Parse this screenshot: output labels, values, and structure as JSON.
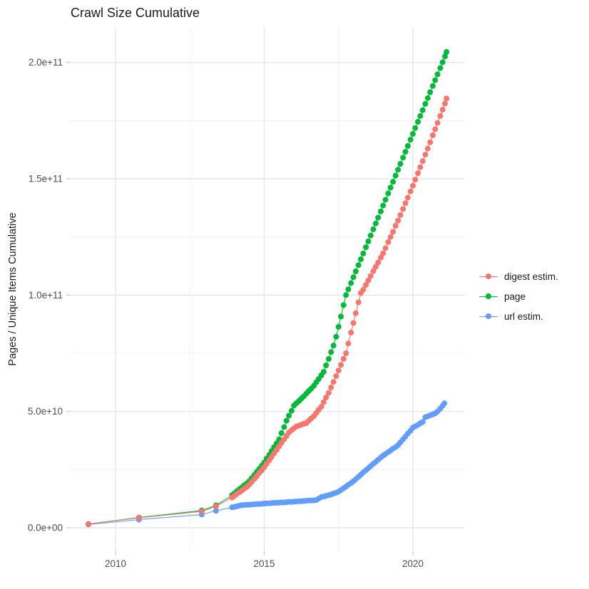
{
  "chart_data": {
    "type": "scatter",
    "title": "Crawl Size Cumulative",
    "xlabel": "",
    "ylabel": "Pages / Unique Items Cumulative",
    "value_unit": "1e9",
    "xlim": [
      2008.5,
      2021.75
    ],
    "ylim_e9": [
      -10,
      215
    ],
    "grid": "on",
    "legend_position": "right",
    "x_ticks": [
      {
        "label": "2010",
        "value": 2010
      },
      {
        "label": "2015",
        "value": 2015
      },
      {
        "label": "2020",
        "value": 2020
      }
    ],
    "x_minor": [
      2012.5,
      2017.5
    ],
    "y_ticks": [
      {
        "label": "0.0e+00",
        "value": 0
      },
      {
        "label": "5.0e+10",
        "value": 50
      },
      {
        "label": "1.0e+11",
        "value": 100
      },
      {
        "label": "1.5e+11",
        "value": 150
      },
      {
        "label": "2.0e+11",
        "value": 200
      }
    ],
    "y_minor": [
      25,
      75,
      125,
      175
    ],
    "series": [
      {
        "name": "digest estim.",
        "color": "#F8766D",
        "points": [
          [
            2009.09,
            1.6
          ],
          [
            2010.79,
            4.3
          ],
          [
            2012.9,
            7.0
          ],
          [
            2013.38,
            9.2
          ],
          [
            2013.92,
            13.0
          ],
          [
            2014.0,
            13.7
          ],
          [
            2014.08,
            14.5
          ],
          [
            2014.17,
            15.3
          ],
          [
            2014.25,
            16.0
          ],
          [
            2014.33,
            16.8
          ],
          [
            2014.42,
            17.6
          ],
          [
            2014.5,
            18.5
          ],
          [
            2014.58,
            19.7
          ],
          [
            2014.67,
            21.0
          ],
          [
            2014.75,
            22.2
          ],
          [
            2014.83,
            23.5
          ],
          [
            2014.92,
            24.7
          ],
          [
            2015.0,
            26.0
          ],
          [
            2015.08,
            27.5
          ],
          [
            2015.17,
            29.0
          ],
          [
            2015.25,
            30.5
          ],
          [
            2015.33,
            32.0
          ],
          [
            2015.42,
            33.5
          ],
          [
            2015.5,
            35.0
          ],
          [
            2015.58,
            36.5
          ],
          [
            2015.67,
            38.0
          ],
          [
            2015.75,
            39.5
          ],
          [
            2015.83,
            41.0
          ],
          [
            2015.92,
            41.9
          ],
          [
            2016.0,
            42.7
          ],
          [
            2016.08,
            43.5
          ],
          [
            2016.17,
            43.9
          ],
          [
            2016.25,
            44.3
          ],
          [
            2016.33,
            44.7
          ],
          [
            2016.42,
            45.0
          ],
          [
            2016.5,
            46.0
          ],
          [
            2016.58,
            47.0
          ],
          [
            2016.67,
            48.0
          ],
          [
            2016.75,
            49.3
          ],
          [
            2016.83,
            50.7
          ],
          [
            2016.92,
            52.0
          ],
          [
            2017.0,
            54.0
          ],
          [
            2017.08,
            56.0
          ],
          [
            2017.17,
            58.0
          ],
          [
            2017.25,
            60.3
          ],
          [
            2017.33,
            62.7
          ],
          [
            2017.42,
            65.2
          ],
          [
            2017.5,
            67.6
          ],
          [
            2017.58,
            70.0
          ],
          [
            2017.67,
            72.6
          ],
          [
            2017.75,
            75.0
          ],
          [
            2017.83,
            79.2
          ],
          [
            2017.92,
            83.9
          ],
          [
            2018.0,
            88.0
          ],
          [
            2018.08,
            92.2
          ],
          [
            2018.17,
            96.9
          ],
          [
            2018.25,
            100.9
          ],
          [
            2018.33,
            102.3
          ],
          [
            2018.42,
            104.4
          ],
          [
            2018.5,
            106.3
          ],
          [
            2018.58,
            108.2
          ],
          [
            2018.67,
            110.3
          ],
          [
            2018.75,
            112.2
          ],
          [
            2018.83,
            114.0
          ],
          [
            2018.92,
            116.1
          ],
          [
            2019.0,
            118.0
          ],
          [
            2019.08,
            120.2
          ],
          [
            2019.17,
            122.8
          ],
          [
            2019.25,
            125.0
          ],
          [
            2019.33,
            127.2
          ],
          [
            2019.42,
            129.8
          ],
          [
            2019.5,
            132.0
          ],
          [
            2019.58,
            134.4
          ],
          [
            2019.67,
            137.0
          ],
          [
            2019.75,
            139.5
          ],
          [
            2019.83,
            141.9
          ],
          [
            2019.92,
            144.6
          ],
          [
            2020.0,
            147.0
          ],
          [
            2020.08,
            149.6
          ],
          [
            2020.17,
            152.4
          ],
          [
            2020.25,
            155.0
          ],
          [
            2020.33,
            157.6
          ],
          [
            2020.42,
            160.4
          ],
          [
            2020.5,
            163.0
          ],
          [
            2020.58,
            165.7
          ],
          [
            2020.67,
            168.7
          ],
          [
            2020.75,
            171.3
          ],
          [
            2020.83,
            174.0
          ],
          [
            2020.92,
            177.0
          ],
          [
            2021.0,
            179.7
          ],
          [
            2021.08,
            182.3
          ],
          [
            2021.13,
            184.5
          ]
        ]
      },
      {
        "name": "page",
        "color": "#00BA38",
        "points": [
          [
            2009.09,
            1.6
          ],
          [
            2010.79,
            4.4
          ],
          [
            2012.9,
            7.4
          ],
          [
            2013.38,
            9.6
          ],
          [
            2013.92,
            14.0
          ],
          [
            2014.0,
            14.8
          ],
          [
            2014.08,
            15.7
          ],
          [
            2014.17,
            16.6
          ],
          [
            2014.25,
            17.4
          ],
          [
            2014.33,
            18.3
          ],
          [
            2014.42,
            19.1
          ],
          [
            2014.5,
            20.0
          ],
          [
            2014.58,
            21.3
          ],
          [
            2014.67,
            22.7
          ],
          [
            2014.75,
            24.0
          ],
          [
            2014.83,
            25.3
          ],
          [
            2014.92,
            26.7
          ],
          [
            2015.0,
            28.0
          ],
          [
            2015.08,
            29.7
          ],
          [
            2015.17,
            31.3
          ],
          [
            2015.25,
            33.0
          ],
          [
            2015.33,
            34.7
          ],
          [
            2015.42,
            36.3
          ],
          [
            2015.5,
            38.0
          ],
          [
            2015.58,
            40.7
          ],
          [
            2015.67,
            43.3
          ],
          [
            2015.75,
            46.0
          ],
          [
            2015.83,
            48.2
          ],
          [
            2015.92,
            50.3
          ],
          [
            2016.0,
            52.5
          ],
          [
            2016.08,
            53.5
          ],
          [
            2016.17,
            54.5
          ],
          [
            2016.25,
            55.5
          ],
          [
            2016.33,
            56.5
          ],
          [
            2016.42,
            57.7
          ],
          [
            2016.5,
            58.8
          ],
          [
            2016.58,
            59.8
          ],
          [
            2016.67,
            61.0
          ],
          [
            2016.75,
            62.5
          ],
          [
            2016.83,
            63.9
          ],
          [
            2016.92,
            65.5
          ],
          [
            2017.0,
            67.0
          ],
          [
            2017.08,
            69.8
          ],
          [
            2017.17,
            72.6
          ],
          [
            2017.25,
            75.5
          ],
          [
            2017.33,
            78.3
          ],
          [
            2017.42,
            82.1
          ],
          [
            2017.5,
            86.4
          ],
          [
            2017.58,
            90.8
          ],
          [
            2017.67,
            95.7
          ],
          [
            2017.75,
            100.0
          ],
          [
            2017.83,
            102.5
          ],
          [
            2017.92,
            105.2
          ],
          [
            2018.0,
            107.7
          ],
          [
            2018.08,
            110.2
          ],
          [
            2018.17,
            112.9
          ],
          [
            2018.25,
            115.4
          ],
          [
            2018.33,
            117.9
          ],
          [
            2018.42,
            120.6
          ],
          [
            2018.5,
            123.1
          ],
          [
            2018.58,
            125.6
          ],
          [
            2018.67,
            128.3
          ],
          [
            2018.75,
            130.8
          ],
          [
            2018.83,
            133.3
          ],
          [
            2018.92,
            136.0
          ],
          [
            2019.0,
            138.5
          ],
          [
            2019.08,
            141.0
          ],
          [
            2019.17,
            143.7
          ],
          [
            2019.25,
            146.2
          ],
          [
            2019.33,
            148.7
          ],
          [
            2019.42,
            151.4
          ],
          [
            2019.5,
            153.9
          ],
          [
            2019.58,
            156.4
          ],
          [
            2019.67,
            159.1
          ],
          [
            2019.75,
            161.6
          ],
          [
            2019.83,
            164.1
          ],
          [
            2019.92,
            166.8
          ],
          [
            2020.0,
            169.3
          ],
          [
            2020.08,
            171.8
          ],
          [
            2020.17,
            174.5
          ],
          [
            2020.25,
            177.0
          ],
          [
            2020.33,
            179.5
          ],
          [
            2020.42,
            182.2
          ],
          [
            2020.5,
            184.7
          ],
          [
            2020.58,
            187.2
          ],
          [
            2020.67,
            189.9
          ],
          [
            2020.75,
            192.4
          ],
          [
            2020.83,
            194.9
          ],
          [
            2020.92,
            197.6
          ],
          [
            2021.0,
            200.1
          ],
          [
            2021.08,
            202.6
          ],
          [
            2021.13,
            204.5
          ]
        ]
      },
      {
        "name": "url estim.",
        "color": "#619CFF",
        "points": [
          [
            2009.09,
            1.4
          ],
          [
            2010.79,
            3.5
          ],
          [
            2012.9,
            5.7
          ],
          [
            2013.38,
            7.3
          ],
          [
            2013.92,
            8.8
          ],
          [
            2014.0,
            9.0
          ],
          [
            2014.08,
            9.2
          ],
          [
            2014.17,
            9.5
          ],
          [
            2014.25,
            9.7
          ],
          [
            2014.33,
            9.8
          ],
          [
            2014.42,
            9.9
          ],
          [
            2014.5,
            9.9
          ],
          [
            2014.58,
            10.0
          ],
          [
            2014.67,
            10.1
          ],
          [
            2014.75,
            10.2
          ],
          [
            2014.83,
            10.2
          ],
          [
            2014.92,
            10.3
          ],
          [
            2015.0,
            10.4
          ],
          [
            2015.08,
            10.5
          ],
          [
            2015.17,
            10.5
          ],
          [
            2015.25,
            10.6
          ],
          [
            2015.33,
            10.7
          ],
          [
            2015.42,
            10.7
          ],
          [
            2015.5,
            10.8
          ],
          [
            2015.58,
            10.9
          ],
          [
            2015.67,
            10.9
          ],
          [
            2015.75,
            11.0
          ],
          [
            2015.83,
            11.1
          ],
          [
            2015.92,
            11.1
          ],
          [
            2016.0,
            11.2
          ],
          [
            2016.08,
            11.3
          ],
          [
            2016.17,
            11.4
          ],
          [
            2016.25,
            11.4
          ],
          [
            2016.33,
            11.5
          ],
          [
            2016.42,
            11.6
          ],
          [
            2016.5,
            11.7
          ],
          [
            2016.58,
            11.7
          ],
          [
            2016.67,
            11.8
          ],
          [
            2016.75,
            11.9
          ],
          [
            2016.83,
            12.5
          ],
          [
            2016.92,
            13.2
          ],
          [
            2017.0,
            13.4
          ],
          [
            2017.08,
            13.7
          ],
          [
            2017.17,
            14.0
          ],
          [
            2017.25,
            14.3
          ],
          [
            2017.33,
            14.7
          ],
          [
            2017.42,
            15.1
          ],
          [
            2017.5,
            15.5
          ],
          [
            2017.58,
            16.2
          ],
          [
            2017.67,
            17.0
          ],
          [
            2017.75,
            17.7
          ],
          [
            2017.83,
            18.5
          ],
          [
            2017.92,
            19.2
          ],
          [
            2018.0,
            20.0
          ],
          [
            2018.08,
            20.9
          ],
          [
            2018.17,
            21.9
          ],
          [
            2018.25,
            22.8
          ],
          [
            2018.33,
            23.8
          ],
          [
            2018.42,
            24.7
          ],
          [
            2018.5,
            25.6
          ],
          [
            2018.58,
            26.5
          ],
          [
            2018.67,
            27.5
          ],
          [
            2018.75,
            28.3
          ],
          [
            2018.83,
            29.2
          ],
          [
            2018.92,
            30.2
          ],
          [
            2019.0,
            31.0
          ],
          [
            2019.08,
            31.7
          ],
          [
            2019.17,
            32.5
          ],
          [
            2019.25,
            33.2
          ],
          [
            2019.33,
            34.0
          ],
          [
            2019.42,
            34.7
          ],
          [
            2019.5,
            35.5
          ],
          [
            2019.58,
            36.7
          ],
          [
            2019.67,
            38.0
          ],
          [
            2019.75,
            39.2
          ],
          [
            2019.83,
            40.5
          ],
          [
            2019.92,
            41.7
          ],
          [
            2020.0,
            43.0
          ],
          [
            2020.08,
            43.6
          ],
          [
            2020.17,
            44.2
          ],
          [
            2020.25,
            44.9
          ],
          [
            2020.33,
            45.5
          ],
          [
            2020.42,
            47.5
          ],
          [
            2020.5,
            47.9
          ],
          [
            2020.58,
            48.3
          ],
          [
            2020.67,
            48.7
          ],
          [
            2020.75,
            49.2
          ],
          [
            2020.83,
            50.0
          ],
          [
            2020.92,
            51.2
          ],
          [
            2021.0,
            52.4
          ],
          [
            2021.06,
            53.5
          ]
        ]
      }
    ]
  },
  "legend": {
    "items": [
      {
        "label": "digest estim."
      },
      {
        "label": "page"
      },
      {
        "label": "url estim."
      }
    ]
  }
}
